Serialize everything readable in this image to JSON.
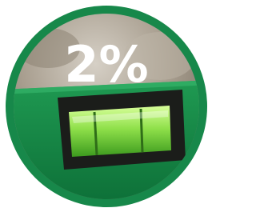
{
  "badge": {
    "label": "2%"
  }
}
